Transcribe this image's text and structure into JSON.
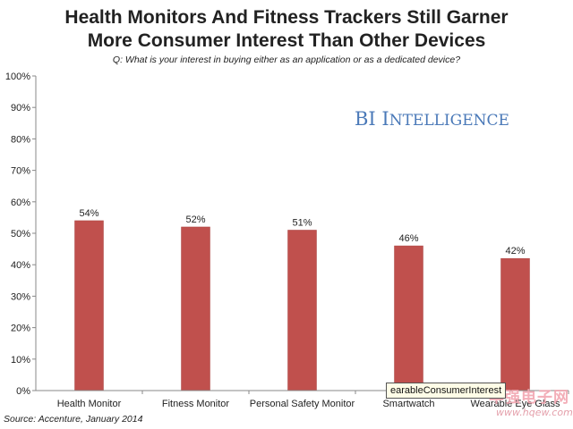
{
  "title_line_1": "Health Monitors And Fitness Trackers Still Garner",
  "title_line_2": "More Consumer Interest Than Other Devices",
  "subtitle": "Q: What is your interest in buying either as an application or as a dedicated device?",
  "brand": {
    "first": "BI",
    "second": "Intelligence"
  },
  "source": "Source: Accenture, January 2014",
  "tooltip": "earableConsumerInterest",
  "watermark": {
    "text": "华强电子网",
    "url": "www.hqew.com"
  },
  "colors": {
    "bar": "#c0504d",
    "bar_edge": "#a94442",
    "axis": "#888888",
    "text": "#222222"
  },
  "chart_data": {
    "type": "bar",
    "title": "Health Monitors And Fitness Trackers Still Garner More Consumer Interest Than Other Devices",
    "categories": [
      "Health Monitor",
      "Fitness Monitor",
      "Personal Safety Monitor",
      "Smartwatch",
      "Wearable Eye Glass"
    ],
    "values": [
      54,
      52,
      51,
      46,
      42
    ],
    "value_labels": [
      "54%",
      "52%",
      "51%",
      "46%",
      "42%"
    ],
    "ylim": [
      0,
      100
    ],
    "yticks": [
      0,
      10,
      20,
      30,
      40,
      50,
      60,
      70,
      80,
      90,
      100
    ],
    "ytick_labels": [
      "0%",
      "10%",
      "20%",
      "30%",
      "40%",
      "50%",
      "60%",
      "70%",
      "80%",
      "90%",
      "100%"
    ],
    "xlabel": "",
    "ylabel": "",
    "grid": false,
    "legend": "none"
  }
}
